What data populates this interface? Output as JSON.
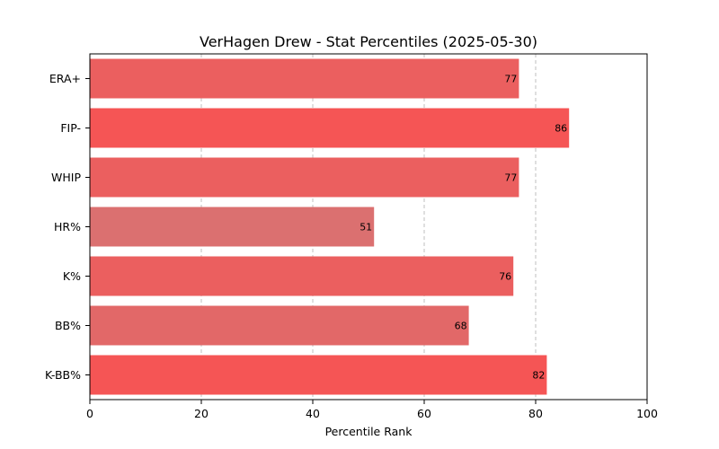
{
  "chart_data": {
    "type": "bar",
    "orientation": "horizontal",
    "title": "VerHagen Drew - Stat Percentiles (2025-05-30)",
    "xlabel": "Percentile Rank",
    "ylabel": "",
    "xlim": [
      0,
      100
    ],
    "xticks": [
      0,
      20,
      40,
      60,
      80,
      100
    ],
    "grid": "x-dashed",
    "categories": [
      "ERA+",
      "FIP-",
      "WHIP",
      "HR%",
      "K%",
      "BB%",
      "K-BB%"
    ],
    "values": [
      77,
      86,
      77,
      51,
      76,
      68,
      82
    ],
    "colors": [
      "#eb5f5f",
      "#f55555",
      "#eb5f5f",
      "#db7070",
      "#eb5f5f",
      "#e26868",
      "#f55555"
    ]
  }
}
